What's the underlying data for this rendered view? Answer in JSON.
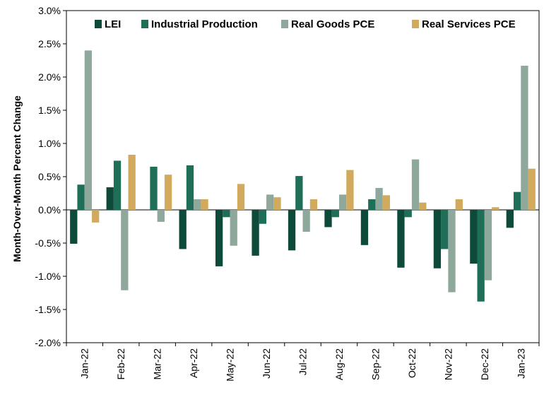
{
  "chart_data": {
    "type": "bar",
    "title": "",
    "xlabel": "",
    "ylabel": "Month-Over-Month Percent Change",
    "ylim": [
      -2.0,
      3.0
    ],
    "yticks": [
      -2.0,
      -1.5,
      -1.0,
      -0.5,
      0.0,
      0.5,
      1.0,
      1.5,
      2.0,
      2.5,
      3.0
    ],
    "ytick_labels": [
      "-2.0%",
      "-1.5%",
      "-1.0%",
      "-0.5%",
      "0.0%",
      "0.5%",
      "1.0%",
      "1.5%",
      "2.0%",
      "2.5%",
      "3.0%"
    ],
    "categories": [
      "Jan-22",
      "Feb-22",
      "Mar-22",
      "Apr-22",
      "May-22",
      "Jun-22",
      "Jul-22",
      "Aug-22",
      "Sep-22",
      "Oct-22",
      "Nov-22",
      "Dec-22",
      "Jan-23"
    ],
    "legend_position": "top",
    "grid": false,
    "series": [
      {
        "name": "LEI",
        "color": "#0d4a3a",
        "values": [
          -0.51,
          0.34,
          0.0,
          -0.59,
          -0.85,
          -0.69,
          -0.61,
          -0.26,
          -0.53,
          -0.87,
          -0.88,
          -0.81,
          -0.27
        ]
      },
      {
        "name": "Industrial Production",
        "color": "#1e6e58",
        "values": [
          0.38,
          0.74,
          0.65,
          0.67,
          -0.11,
          -0.21,
          0.51,
          -0.11,
          0.16,
          -0.11,
          -0.59,
          -1.38,
          0.27
        ]
      },
      {
        "name": "Real Goods PCE",
        "color": "#8fa89c",
        "values": [
          2.4,
          -1.21,
          -0.18,
          0.16,
          -0.54,
          0.23,
          -0.33,
          0.23,
          0.33,
          0.76,
          -1.24,
          -1.06,
          2.17
        ]
      },
      {
        "name": "Real Services PCE",
        "color": "#d1aa5e",
        "values": [
          -0.19,
          0.83,
          0.53,
          0.16,
          0.39,
          0.19,
          0.16,
          0.6,
          0.22,
          0.11,
          0.16,
          0.04,
          0.62
        ]
      }
    ]
  }
}
